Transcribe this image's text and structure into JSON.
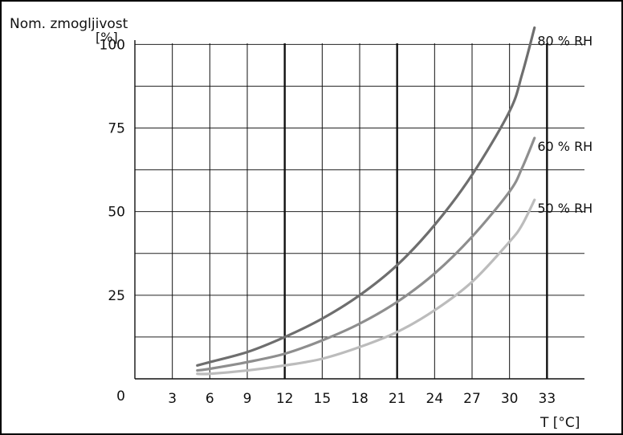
{
  "chart_data": {
    "type": "line",
    "ylabel_line1": "Nom. zmogljivost",
    "ylabel_line2": "[%]",
    "xlabel": "T [°C]",
    "x_ticks": [
      3,
      6,
      9,
      12,
      15,
      18,
      21,
      24,
      27,
      30,
      33
    ],
    "x_tick_labels": [
      "3",
      "6",
      "9",
      "12",
      "15",
      "18",
      "21",
      "24",
      "27",
      "30",
      "33"
    ],
    "y_ticks": [
      0,
      25,
      50,
      75,
      100
    ],
    "y_tick_labels": [
      "0",
      "25",
      "50",
      "75",
      "100"
    ],
    "y_gridlines": [
      12.5,
      25,
      37.5,
      50,
      62.5,
      75,
      87.5,
      100
    ],
    "xlim": [
      0,
      36
    ],
    "ylim": [
      0,
      108
    ],
    "grid": true,
    "series": [
      {
        "name": "80 % RH",
        "color": "#6e6e6e",
        "x": [
          5,
          6,
          9,
          12,
          15,
          18,
          21,
          24,
          27,
          30,
          31,
          32
        ],
        "y": [
          4,
          5,
          8,
          12.5,
          18,
          25,
          34,
          46,
          61,
          80,
          91,
          105
        ]
      },
      {
        "name": "60 % RH",
        "color": "#8e8e8e",
        "x": [
          5,
          6,
          9,
          12,
          15,
          18,
          21,
          24,
          27,
          30,
          31,
          32
        ],
        "y": [
          2.5,
          3,
          5,
          7.5,
          11.5,
          16.5,
          23,
          31.5,
          42.5,
          56,
          63,
          72
        ]
      },
      {
        "name": "50 % RH",
        "color": "#bcbcbc",
        "x": [
          5,
          6,
          9,
          12,
          15,
          18,
          21,
          24,
          27,
          30,
          31,
          32
        ],
        "y": [
          1.5,
          1.5,
          2.5,
          4,
          6,
          9.5,
          14,
          20.5,
          29,
          41,
          46,
          53.5
        ]
      }
    ],
    "thick_vertical_lines_at": [
      12,
      21,
      33
    ]
  }
}
